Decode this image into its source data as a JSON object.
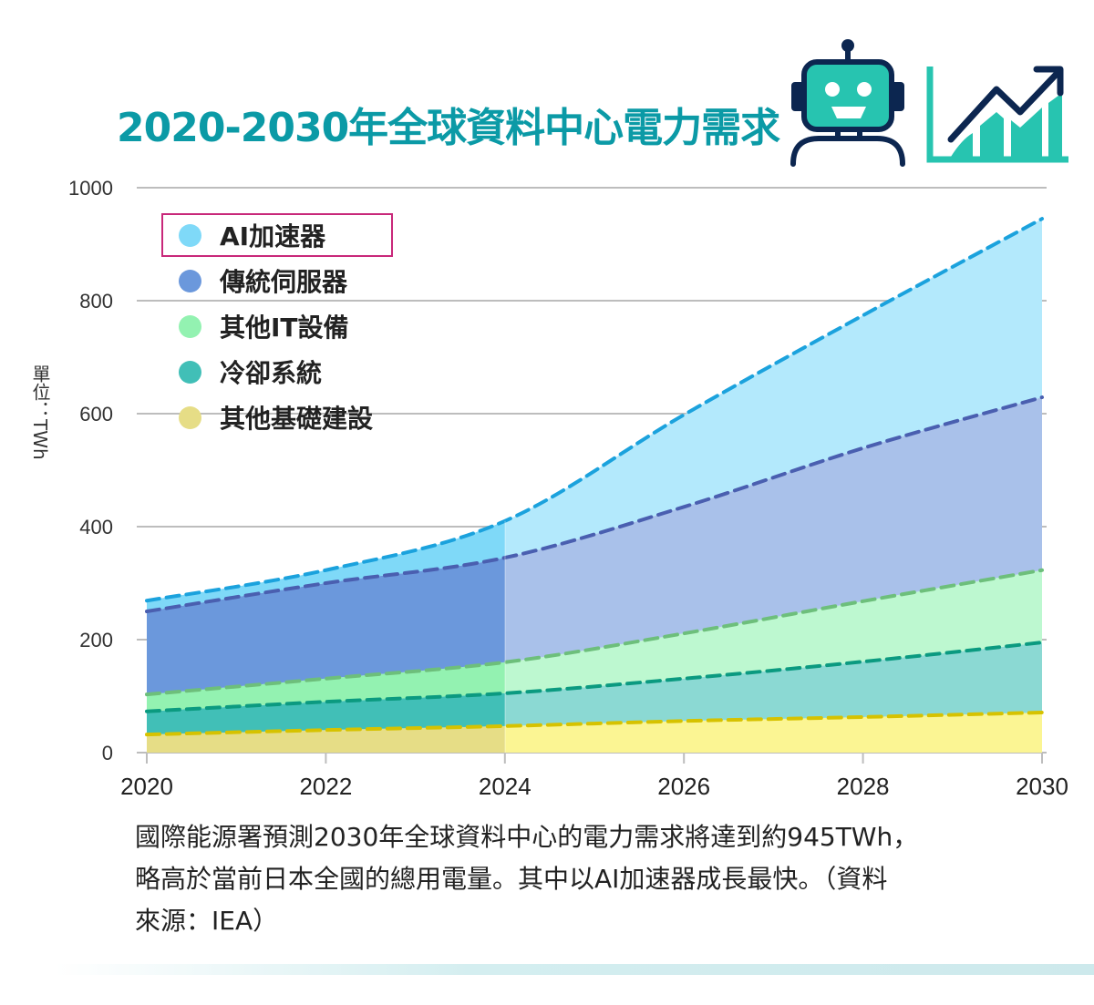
{
  "title": "2020-2030年全球資料中心電力需求",
  "y_unit_label": "單位：TWh",
  "icons": [
    "robot-icon",
    "rising-chart-icon"
  ],
  "legend": [
    {
      "label": "AI加速器",
      "color": "#7fd9f8",
      "highlighted": true
    },
    {
      "label": "傳統伺服器",
      "color": "#6b98dc"
    },
    {
      "label": "其他IT設備",
      "color": "#93f2b1"
    },
    {
      "label": "冷卻系統",
      "color": "#41bfb7"
    },
    {
      "label": "其他基礎建設",
      "color": "#e6dd86"
    }
  ],
  "caption_lines": [
    "國際能源署預測2030年全球資料中心的電力需求將達到約945TWh，",
    "略高於當前日本全國的總用電量。其中以AI加速器成長最快。（資料",
    "來源：IEA）"
  ],
  "chart_data": {
    "type": "area",
    "stacked": true,
    "title": "2020-2030年全球資料中心電力需求",
    "ylabel": "單位：TWh",
    "xlabel": "",
    "x": [
      2020,
      2022,
      2024,
      2026,
      2028,
      2030
    ],
    "x_tick_labels": [
      "2020",
      "2022",
      "2024",
      "2026",
      "2028",
      "2030"
    ],
    "ylim": [
      0,
      1000
    ],
    "y_ticks": [
      0,
      200,
      400,
      600,
      800,
      1000
    ],
    "grid": true,
    "legend_position": "top-left",
    "projection_from": 2024,
    "series": [
      {
        "name": "其他基礎建設",
        "values": [
          32,
          40,
          47,
          56,
          63,
          71
        ],
        "fill": "#e6dd86",
        "fill_projected": "#fbf593",
        "line": "#d6c200"
      },
      {
        "name": "冷卻系統",
        "values": [
          41,
          50,
          58,
          75,
          98,
          124
        ],
        "fill": "#41bfb7",
        "fill_projected": "#8bd9d3",
        "line": "#0b9a80"
      },
      {
        "name": "其他IT設備",
        "values": [
          30,
          41,
          55,
          80,
          107,
          128
        ],
        "fill": "#93f2b1",
        "fill_projected": "#bdf8d0",
        "line": "#6dbf7b"
      },
      {
        "name": "傳統伺服器",
        "values": [
          147,
          169,
          185,
          224,
          271,
          306
        ],
        "fill": "#6b98dc",
        "fill_projected": "#a9c1ea",
        "line": "#4a5fb0"
      },
      {
        "name": "AI加速器",
        "values": [
          19,
          23,
          65,
          163,
          235,
          316
        ],
        "fill": "#7fd9f8",
        "fill_projected": "#b3e9fc",
        "line": "#1ba2dd"
      }
    ]
  }
}
